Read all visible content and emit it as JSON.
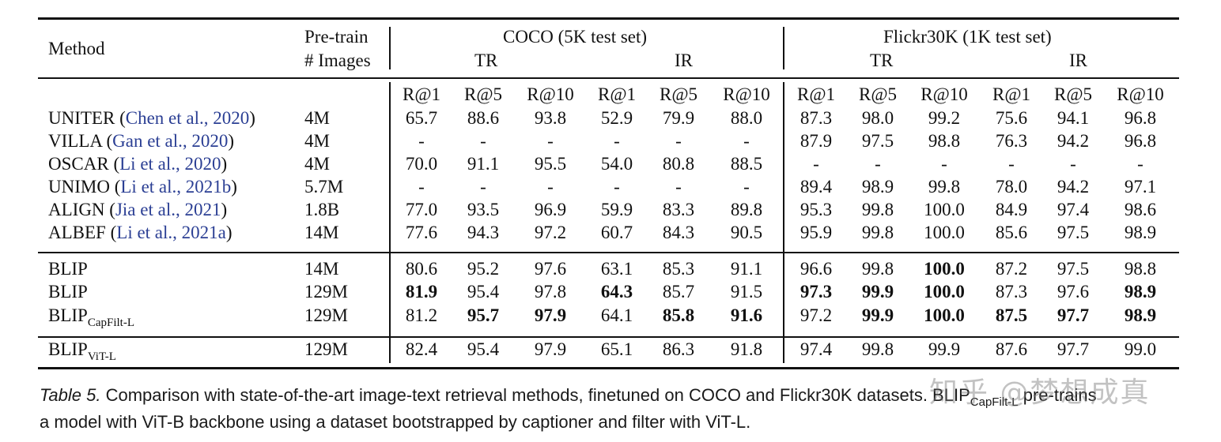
{
  "header": {
    "method": "Method",
    "pretrain_line1": "Pre-train",
    "pretrain_line2": "# Images",
    "coco": "COCO (5K test set)",
    "flickr": "Flickr30K (1K test set)",
    "tr": "TR",
    "ir": "IR",
    "metrics": [
      "R@1",
      "R@5",
      "R@10",
      "R@1",
      "R@5",
      "R@10",
      "R@1",
      "R@5",
      "R@10",
      "R@1",
      "R@5",
      "R@10"
    ]
  },
  "rows": [
    {
      "method": "UNITER",
      "cite": "Chen et al., 2020",
      "images": "4M",
      "values": [
        "65.7",
        "88.6",
        "93.8",
        "52.9",
        "79.9",
        "88.0",
        "87.3",
        "98.0",
        "99.2",
        "75.6",
        "94.1",
        "96.8"
      ]
    },
    {
      "method": "VILLA",
      "cite": "Gan et al., 2020",
      "images": "4M",
      "values": [
        "-",
        "-",
        "-",
        "-",
        "-",
        "-",
        "87.9",
        "97.5",
        "98.8",
        "76.3",
        "94.2",
        "96.8"
      ]
    },
    {
      "method": "OSCAR",
      "cite": "Li et al., 2020",
      "images": "4M",
      "values": [
        "70.0",
        "91.1",
        "95.5",
        "54.0",
        "80.8",
        "88.5",
        "-",
        "-",
        "-",
        "-",
        "-",
        "-"
      ]
    },
    {
      "method": "UNIMO",
      "cite": "Li et al., 2021b",
      "images": "5.7M",
      "values": [
        "-",
        "-",
        "-",
        "-",
        "-",
        "-",
        "89.4",
        "98.9",
        "99.8",
        "78.0",
        "94.2",
        "97.1"
      ]
    },
    {
      "method": "ALIGN",
      "cite": "Jia et al., 2021",
      "images": "1.8B",
      "values": [
        "77.0",
        "93.5",
        "96.9",
        "59.9",
        "83.3",
        "89.8",
        "95.3",
        "99.8",
        "100.0",
        "84.9",
        "97.4",
        "98.6"
      ]
    },
    {
      "method": "ALBEF",
      "cite": "Li et al., 2021a",
      "images": "14M",
      "values": [
        "77.6",
        "94.3",
        "97.2",
        "60.7",
        "84.3",
        "90.5",
        "95.9",
        "99.8",
        "100.0",
        "85.6",
        "97.5",
        "98.9"
      ]
    },
    {
      "method": "BLIP",
      "sub": "",
      "images": "14M",
      "values": [
        "80.6",
        "95.2",
        "97.6",
        "63.1",
        "85.3",
        "91.1",
        "96.6",
        "99.8",
        "100.0",
        "87.2",
        "97.5",
        "98.8"
      ],
      "bold": [
        8
      ]
    },
    {
      "method": "BLIP",
      "sub": "",
      "images": "129M",
      "values": [
        "81.9",
        "95.4",
        "97.8",
        "64.3",
        "85.7",
        "91.5",
        "97.3",
        "99.9",
        "100.0",
        "87.3",
        "97.6",
        "98.9"
      ],
      "bold": [
        0,
        3,
        6,
        7,
        8,
        11
      ]
    },
    {
      "method": "BLIP",
      "sub": "CapFilt-L",
      "images": "129M",
      "values": [
        "81.2",
        "95.7",
        "97.9",
        "64.1",
        "85.8",
        "91.6",
        "97.2",
        "99.9",
        "100.0",
        "87.5",
        "97.7",
        "98.9"
      ],
      "bold": [
        1,
        2,
        4,
        5,
        7,
        8,
        9,
        10,
        11
      ]
    },
    {
      "method": "BLIP",
      "sub": "ViT-L",
      "images": "129M",
      "values": [
        "82.4",
        "95.4",
        "97.9",
        "65.1",
        "86.3",
        "91.8",
        "97.4",
        "99.8",
        "99.9",
        "87.6",
        "97.7",
        "99.0"
      ],
      "bold": []
    }
  ],
  "caption": {
    "label": "Table 5.",
    "text_a": " Comparison with state-of-the-art image-text retrieval methods, finetuned on COCO and Flickr30K datasets. BLIP",
    "text_sub": "CapFilt-L",
    "text_b": " pre-trains",
    "line2": "a model with ViT-B backbone using a dataset bootstrapped by captioner and filter with ViT-L."
  },
  "watermark": "知乎 @梦想成真"
}
